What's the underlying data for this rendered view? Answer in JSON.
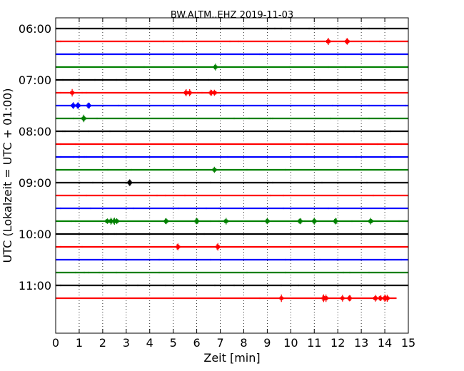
{
  "chart_data": {
    "type": "line",
    "title": "BW.ALTM..EHZ 2019-11-03",
    "xlabel": "Zeit  [min]",
    "ylabel": "UTC (Lokalzeit = UTC + 01:00)",
    "xlim": [
      0,
      15
    ],
    "x_ticks": [
      "0",
      "1",
      "2",
      "3",
      "4",
      "5",
      "6",
      "7",
      "8",
      "9",
      "10",
      "11",
      "12",
      "13",
      "14",
      "15"
    ],
    "row_interval_minutes": 15,
    "y_ticks": [
      {
        "label": "06:00",
        "row": 0
      },
      {
        "label": "07:00",
        "row": 4
      },
      {
        "label": "08:00",
        "row": 8
      },
      {
        "label": "09:00",
        "row": 12
      },
      {
        "label": "10:00",
        "row": 16
      },
      {
        "label": "11:00",
        "row": 20
      }
    ],
    "grid": "vertical dotted",
    "color_cycle": [
      "#000000",
      "#ff0000",
      "#0000ff",
      "#008000"
    ],
    "series": [
      {
        "start": "06:00",
        "events": [],
        "end_min": 15
      },
      {
        "start": "06:15",
        "events": [
          11.6,
          12.4
        ],
        "end_min": 15
      },
      {
        "start": "06:30",
        "events": [],
        "end_min": 15
      },
      {
        "start": "06:45",
        "events": [
          6.8
        ],
        "end_min": 15
      },
      {
        "start": "07:00",
        "events": [],
        "end_min": 15
      },
      {
        "start": "07:15",
        "events": [
          0.7,
          5.55,
          5.7,
          6.6,
          6.75
        ],
        "end_min": 15
      },
      {
        "start": "07:30",
        "events": [
          0.75,
          0.95,
          1.4
        ],
        "end_min": 15
      },
      {
        "start": "07:45",
        "events": [
          1.2
        ],
        "end_min": 15
      },
      {
        "start": "08:00",
        "events": [],
        "end_min": 15
      },
      {
        "start": "08:15",
        "events": [],
        "end_min": 15
      },
      {
        "start": "08:30",
        "events": [],
        "end_min": 15
      },
      {
        "start": "08:45",
        "events": [
          6.75
        ],
        "end_min": 15
      },
      {
        "start": "09:00",
        "events": [
          3.15
        ],
        "end_min": 15
      },
      {
        "start": "09:15",
        "events": [],
        "end_min": 15
      },
      {
        "start": "09:30",
        "events": [],
        "end_min": 15
      },
      {
        "start": "09:45",
        "events": [
          2.2,
          2.35,
          2.5,
          2.6,
          4.7,
          6.0,
          7.25,
          9.0,
          10.4,
          11.0,
          11.9,
          13.4
        ],
        "end_min": 15
      },
      {
        "start": "10:00",
        "events": [],
        "end_min": 15
      },
      {
        "start": "10:15",
        "events": [
          5.2,
          6.9
        ],
        "end_min": 15
      },
      {
        "start": "10:30",
        "events": [],
        "end_min": 15
      },
      {
        "start": "10:45",
        "events": [],
        "end_min": 15
      },
      {
        "start": "11:00",
        "events": [],
        "end_min": 15
      },
      {
        "start": "11:15",
        "events": [
          9.6,
          11.4,
          11.5,
          12.2,
          12.5,
          13.6,
          13.8,
          14.0,
          14.1
        ],
        "end_min": 14.5
      }
    ]
  }
}
